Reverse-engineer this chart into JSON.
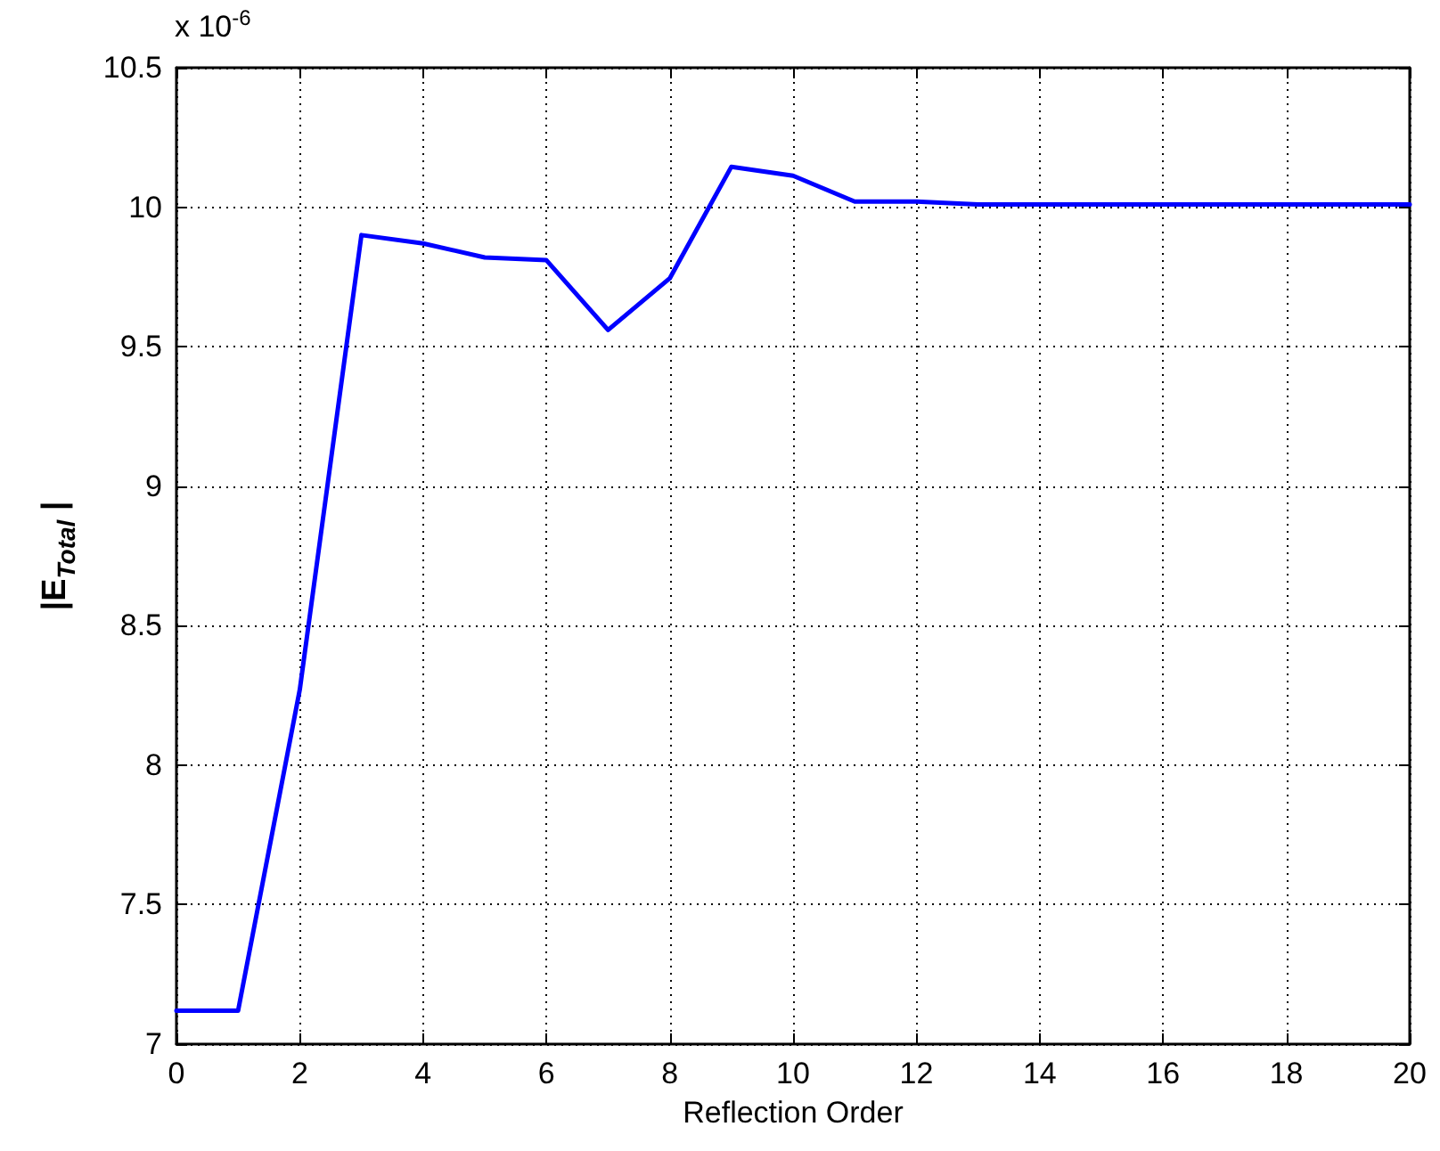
{
  "chart_data": {
    "type": "line",
    "xlabel": "Reflection Order",
    "ylabel": "|E$_{Total}$ |",
    "annotations": [
      "x 10$^{-6}$"
    ],
    "x": [
      0,
      1,
      2,
      3,
      4,
      5,
      6,
      7,
      8,
      9,
      10,
      11,
      12,
      13,
      14,
      15,
      16,
      17,
      18,
      19,
      20
    ],
    "series": [
      {
        "color": "#0000ff",
        "values": [
          7.12,
          7.12,
          8.27,
          9.9,
          9.87,
          9.82,
          9.81,
          9.56,
          9.745,
          10.145,
          10.113,
          10.02,
          10.02,
          10.01,
          10.01,
          10.01,
          10.01,
          10.01,
          10.01,
          10.01,
          10.01
        ]
      }
    ],
    "xlim": [
      0,
      20
    ],
    "xticks": [
      0,
      2,
      4,
      6,
      8,
      10,
      12,
      14,
      16,
      18,
      20
    ],
    "ylim": [
      7,
      10.5
    ],
    "yticks": [
      7,
      7.5,
      8,
      8.5,
      9,
      9.5,
      10,
      10.5
    ],
    "grid": true,
    "marker": "none",
    "line_style": "solid"
  }
}
